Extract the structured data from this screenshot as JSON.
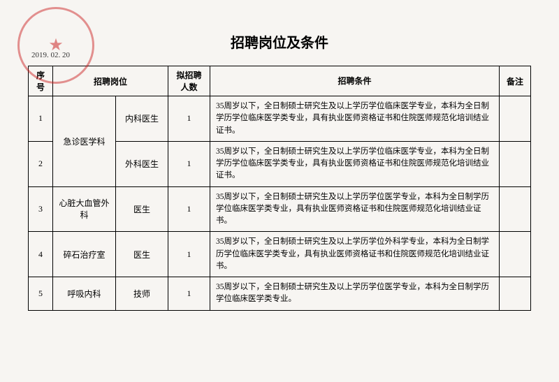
{
  "document": {
    "title": "招聘岗位及条件",
    "date": "2019. 02. 20",
    "stamp_color": "#c81414"
  },
  "table": {
    "headers": {
      "seq": "序号",
      "position": "招聘岗位",
      "count": "拟招聘人数",
      "requirements": "招聘条件",
      "note": "备注"
    },
    "rows": [
      {
        "seq": "1",
        "dept": "急诊医学科",
        "role": "内科医生",
        "count": "1",
        "req": "35周岁以下，全日制硕士研究生及以上学历学位临床医学专业，本科为全日制学历学位临床医学类专业，具有执业医师资格证书和住院医师规范化培训结业证书。",
        "note": ""
      },
      {
        "seq": "2",
        "dept": "",
        "role": "外科医生",
        "count": "1",
        "req": "35周岁以下，全日制硕士研究生及以上学历学位临床医学专业，本科为全日制学历学位临床医学类专业，具有执业医师资格证书和住院医师规范化培训结业证书。",
        "note": ""
      },
      {
        "seq": "3",
        "dept": "心脏大血管外科",
        "role": "医生",
        "count": "1",
        "req": "35周岁以下，全日制硕士研究生及以上学历学位医学专业，本科为全日制学历学位临床医学类专业，具有执业医师资格证书和住院医师规范化培训结业证书。",
        "note": ""
      },
      {
        "seq": "4",
        "dept": "碎石治疗室",
        "role": "医生",
        "count": "1",
        "req": "35周岁以下，全日制硕士研究生及以上学历学位外科学专业，本科为全日制学历学位临床医学类专业，具有执业医师资格证书和住院医师规范化培训结业证书。",
        "note": ""
      },
      {
        "seq": "5",
        "dept": "呼吸内科",
        "role": "技师",
        "count": "1",
        "req": "35周岁以下，全日制硕士研究生及以上学历学位医学专业，本科为全日制学历学位临床医学类专业。",
        "note": ""
      }
    ]
  }
}
